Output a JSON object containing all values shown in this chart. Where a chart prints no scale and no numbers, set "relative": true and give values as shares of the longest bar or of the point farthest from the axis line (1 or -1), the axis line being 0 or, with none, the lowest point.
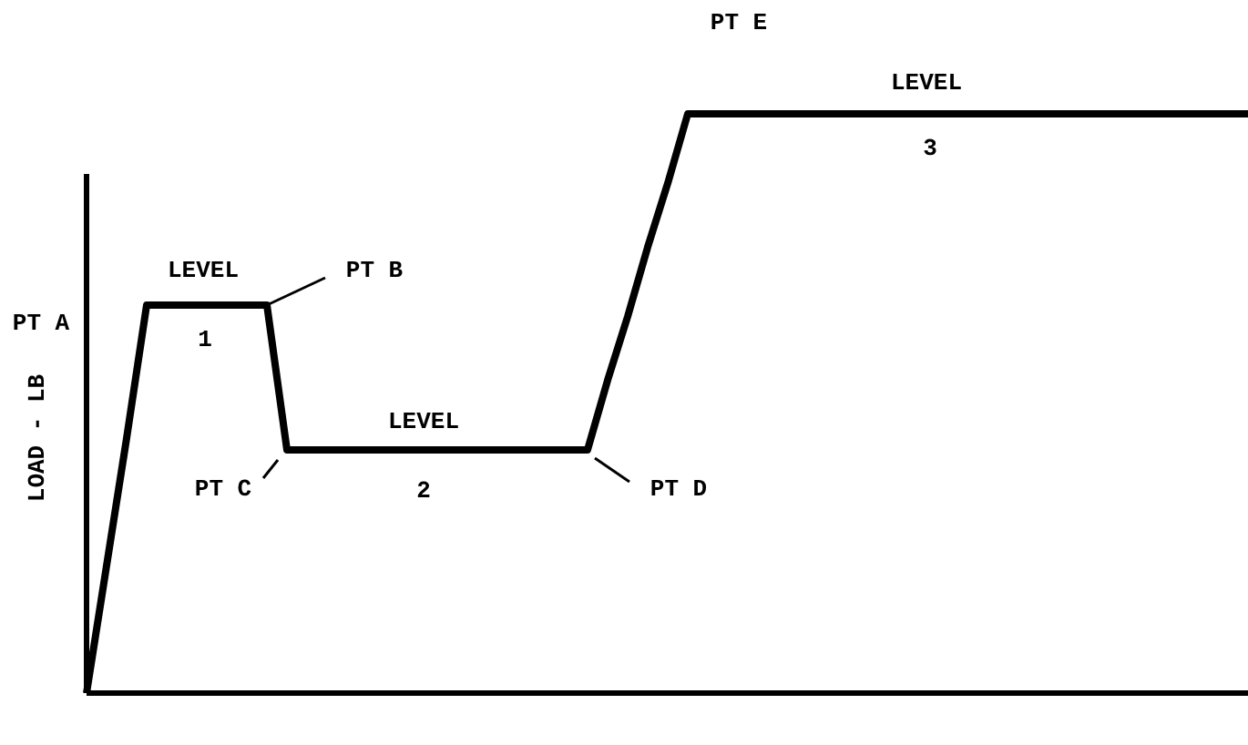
{
  "chart_data": {
    "type": "line",
    "relative": true,
    "ylabel": "LOAD - LB",
    "categories": [
      null,
      null,
      null,
      null,
      null,
      null,
      null,
      null,
      null,
      null,
      null,
      null,
      null,
      null,
      null,
      null,
      null,
      null,
      null,
      null,
      null,
      null,
      null,
      null,
      null,
      null,
      null,
      null,
      null,
      null,
      null,
      null,
      null,
      null,
      null,
      null,
      null,
      null,
      null,
      null,
      null,
      null,
      null,
      null,
      null,
      null,
      null,
      null,
      null,
      null,
      null,
      null,
      null,
      null,
      null,
      null,
      null,
      null,
      null
    ],
    "series": [
      {
        "color": "#000000",
        "values": [
          0,
          0.22,
          0.44,
          0.67,
          0.67,
          0.67,
          0.67,
          0.67,
          0.67,
          0.67,
          0.42,
          0.42,
          0.42,
          0.42,
          0.42,
          0.42,
          0.42,
          0.42,
          0.42,
          0.42,
          0.42,
          0.42,
          0.42,
          0.42,
          0.42,
          0.42,
          0.54,
          0.65,
          0.77,
          0.88,
          1,
          1,
          1,
          1,
          1,
          1,
          1,
          1,
          1,
          1,
          1,
          1,
          1,
          1,
          1,
          1,
          1,
          1,
          1,
          1,
          1,
          1,
          1,
          1,
          1,
          1,
          1,
          1,
          1
        ]
      }
    ],
    "marker": "none",
    "line_style": "solid",
    "annotations": [
      "PT A",
      "LEVEL",
      "1",
      "PT B",
      "PT C",
      "LEVEL",
      "2",
      "PT D",
      "PT E",
      "LEVEL",
      "3"
    ]
  }
}
